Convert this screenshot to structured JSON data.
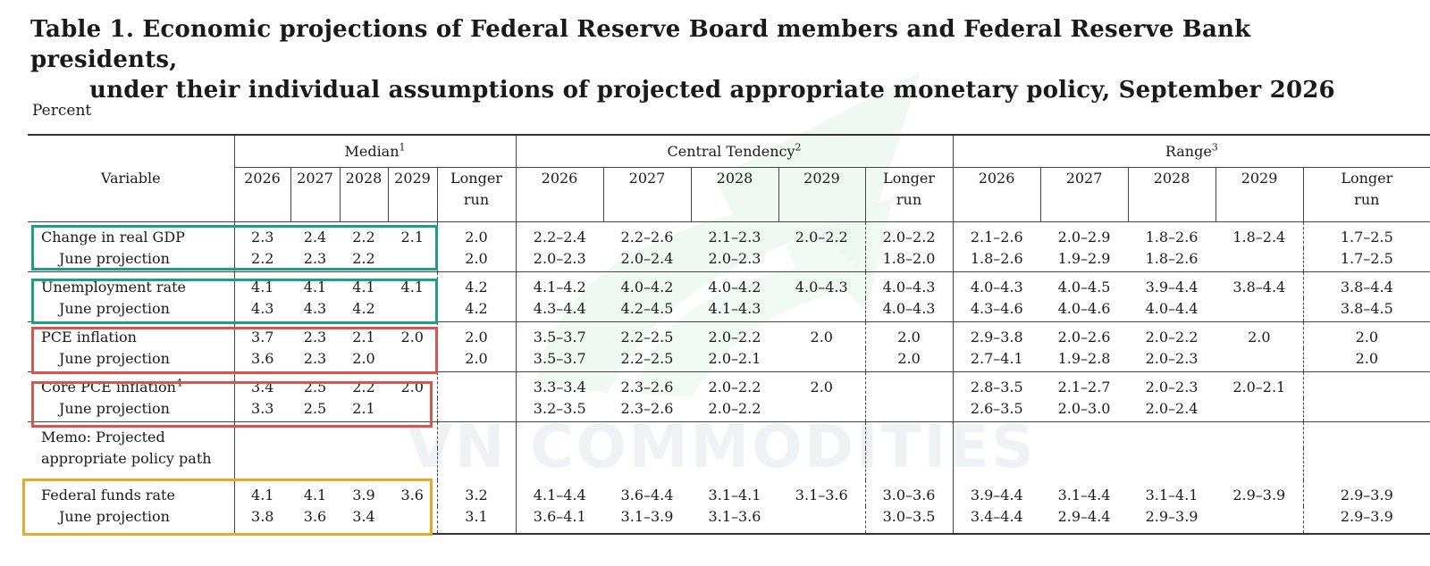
{
  "title": {
    "line1": "Table 1.  Economic projections of Federal Reserve Board members and Federal Reserve Bank presidents,",
    "line2": "under their individual assumptions of projected appropriate monetary policy, September 2026"
  },
  "unit_label": "Percent",
  "watermark": "VN COMMODITIES",
  "header": {
    "variable": "Variable",
    "median": "Median",
    "median_note": "1",
    "central_tendency": "Central Tendency",
    "central_tendency_note": "2",
    "range": "Range",
    "range_note": "3",
    "years": [
      "2026",
      "2027",
      "2028",
      "2029"
    ],
    "longer_run_1": "Longer",
    "longer_run_2": "run"
  },
  "rows": [
    {
      "label": "Change in real GDP",
      "note": "",
      "median": [
        "2.3",
        "2.4",
        "2.2",
        "2.1",
        "2.0"
      ],
      "ct": [
        "2.2–2.4",
        "2.2–2.6",
        "2.1–2.3",
        "2.0–2.2",
        "2.0–2.2"
      ],
      "range": [
        "2.1–2.6",
        "2.0–2.9",
        "1.8–2.6",
        "1.8–2.4",
        "1.7–2.5"
      ]
    },
    {
      "label": "June projection",
      "median": [
        "2.2",
        "2.3",
        "2.2",
        "",
        "2.0"
      ],
      "ct": [
        "2.0–2.3",
        "2.0–2.4",
        "2.0–2.3",
        "",
        "1.8–2.0"
      ],
      "range": [
        "1.8–2.6",
        "1.9–2.9",
        "1.8–2.6",
        "",
        "1.7–2.5"
      ]
    },
    {
      "label": "Unemployment rate",
      "note": "",
      "median": [
        "4.1",
        "4.1",
        "4.1",
        "4.1",
        "4.2"
      ],
      "ct": [
        "4.1–4.2",
        "4.0–4.2",
        "4.0–4.2",
        "4.0–4.3",
        "4.0–4.3"
      ],
      "range": [
        "4.0–4.3",
        "4.0–4.5",
        "3.9–4.4",
        "3.8–4.4",
        "3.8–4.4"
      ]
    },
    {
      "label": "June projection",
      "median": [
        "4.3",
        "4.3",
        "4.2",
        "",
        "4.2"
      ],
      "ct": [
        "4.3–4.4",
        "4.2–4.5",
        "4.1–4.3",
        "",
        "4.0–4.3"
      ],
      "range": [
        "4.3–4.6",
        "4.0–4.6",
        "4.0–4.4",
        "",
        "3.8–4.5"
      ]
    },
    {
      "label": "PCE inflation",
      "note": "",
      "median": [
        "3.7",
        "2.3",
        "2.1",
        "2.0",
        "2.0"
      ],
      "ct": [
        "3.5–3.7",
        "2.2–2.5",
        "2.0–2.2",
        "2.0",
        "2.0"
      ],
      "range": [
        "2.9–3.8",
        "2.0–2.6",
        "2.0–2.2",
        "2.0",
        "2.0"
      ]
    },
    {
      "label": "June projection",
      "median": [
        "3.6",
        "2.3",
        "2.0",
        "",
        "2.0"
      ],
      "ct": [
        "3.5–3.7",
        "2.2–2.5",
        "2.0–2.1",
        "",
        "2.0"
      ],
      "range": [
        "2.7–4.1",
        "1.9–2.8",
        "2.0–2.3",
        "",
        "2.0"
      ]
    },
    {
      "label": "Core PCE inflation",
      "note": "4",
      "median": [
        "3.4",
        "2.5",
        "2.2",
        "2.0",
        ""
      ],
      "ct": [
        "3.3–3.4",
        "2.3–2.6",
        "2.0–2.2",
        "2.0",
        ""
      ],
      "range": [
        "2.8–3.5",
        "2.1–2.7",
        "2.0–2.3",
        "2.0–2.1",
        ""
      ]
    },
    {
      "label": "June projection",
      "median": [
        "3.3",
        "2.5",
        "2.1",
        "",
        ""
      ],
      "ct": [
        "3.2–3.5",
        "2.3–2.6",
        "2.0–2.2",
        "",
        ""
      ],
      "range": [
        "2.6–3.5",
        "2.0–3.0",
        "2.0–2.4",
        "",
        ""
      ]
    },
    {
      "label": "Federal funds rate",
      "note": "",
      "median": [
        "4.1",
        "4.1",
        "3.9",
        "3.6",
        "3.2"
      ],
      "ct": [
        "4.1–4.4",
        "3.6–4.4",
        "3.1–4.1",
        "3.1–3.6",
        "3.0–3.6"
      ],
      "range": [
        "3.9–4.4",
        "3.1–4.4",
        "3.1–4.1",
        "2.9–3.9",
        "2.9–3.9"
      ]
    },
    {
      "label": "June projection",
      "median": [
        "3.8",
        "3.6",
        "3.4",
        "",
        "3.1"
      ],
      "ct": [
        "3.6–4.1",
        "3.1–3.9",
        "3.1–3.6",
        "",
        "3.0–3.5"
      ],
      "range": [
        "3.4–4.4",
        "2.9–4.4",
        "2.9–3.9",
        "",
        "2.9–3.9"
      ]
    }
  ],
  "memo": {
    "line1": "Memo: Projected",
    "line2": "appropriate policy path"
  },
  "highlight_colors": {
    "gdp_unemployment": "#1e9e83",
    "inflation": "#d9534f",
    "fed_funds": "#e8a82a"
  }
}
